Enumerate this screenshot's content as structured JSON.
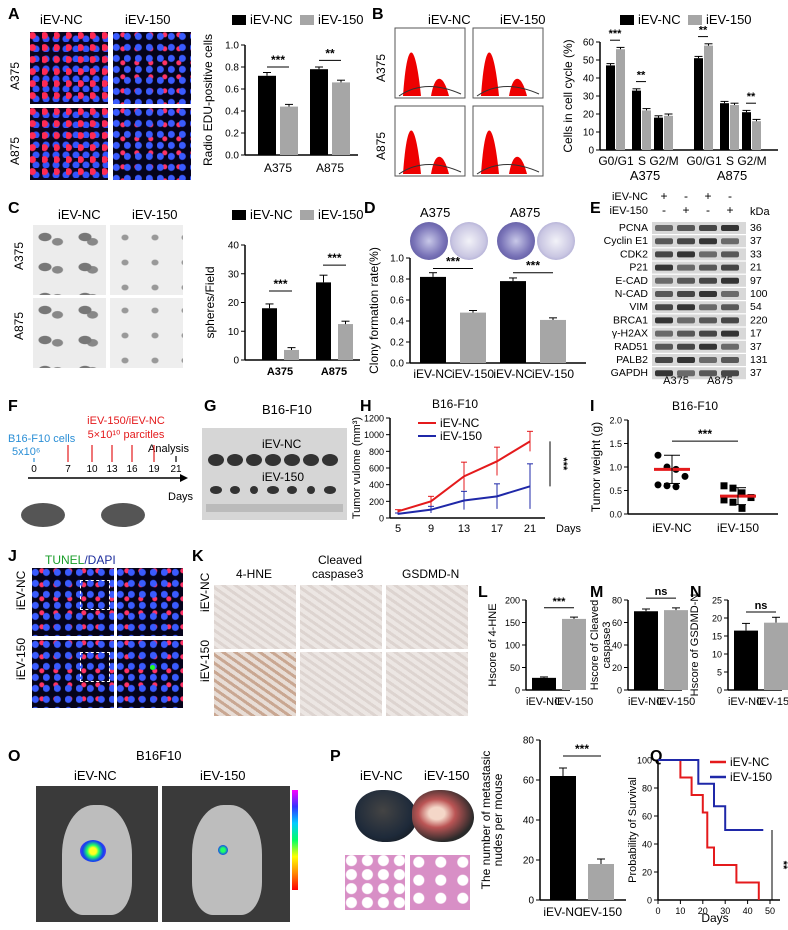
{
  "panels": {
    "A": {
      "label": "A",
      "col1": "iEV-NC",
      "col2": "iEV-150",
      "row1": "A375",
      "row2": "A875",
      "legend": [
        "iEV-NC",
        "iEV-150"
      ],
      "ylabel": "Radio EDU-positive cells",
      "yticks": [
        "0.0",
        "0.2",
        "0.4",
        "0.6",
        "0.8",
        "1.0"
      ],
      "groups": [
        "A375",
        "A875"
      ],
      "sig": [
        "***",
        "**"
      ]
    },
    "B": {
      "label": "B",
      "col1": "iEV-NC",
      "col2": "iEV-150",
      "row1": "A375",
      "row2": "A875",
      "legend": [
        "iEV-NC",
        "iEV-150"
      ],
      "ylabel": "Cells in cell cycle (%)",
      "yticks": [
        "0",
        "10",
        "20",
        "30",
        "40",
        "50",
        "60"
      ],
      "phases": [
        "G0/G1",
        "S",
        "G2/M",
        "G0/G1",
        "S",
        "G2/M"
      ],
      "groups": [
        "A375",
        "A875"
      ],
      "sig": [
        "***",
        "**",
        "**",
        "**"
      ]
    },
    "C": {
      "label": "C",
      "col1": "iEV-NC",
      "col2": "iEV-150",
      "row1": "A375",
      "row2": "A875",
      "legend": [
        "iEV-NC",
        "iEV-150"
      ],
      "ylabel": "spheres/Field",
      "yticks": [
        "0",
        "10",
        "20",
        "30",
        "40"
      ],
      "groups": [
        "A375",
        "A875"
      ],
      "sig": [
        "***",
        "***"
      ]
    },
    "D": {
      "label": "D",
      "col1": "A375",
      "col2": "A875",
      "ylabel": "Clony formation rate(%)",
      "yticks": [
        "0.0",
        "0.2",
        "0.4",
        "0.6",
        "0.8",
        "1.0"
      ],
      "xlabels": [
        "iEV-NC",
        "iEV-150",
        "iEV-NC",
        "iEV-150"
      ],
      "sig": [
        "***",
        "***"
      ]
    },
    "E": {
      "label": "E",
      "rows_header": [
        "iEV-NC",
        "iEV-150"
      ],
      "signs": [
        [
          "+",
          "-",
          "+",
          "-"
        ],
        [
          "-",
          "+",
          "-",
          "+"
        ]
      ],
      "kda": "kDa",
      "proteins": [
        "PCNA",
        "Cyclin E1",
        "CDK2",
        "P21",
        "E-CAD",
        "N-CAD",
        "VIM",
        "BRCA1",
        "γ-H2AX",
        "RAD51",
        "PALB2",
        "GAPDH"
      ],
      "weights": [
        "36",
        "37",
        "33",
        "21",
        "97",
        "100",
        "54",
        "220",
        "17",
        "37",
        "131",
        "37"
      ],
      "groups": [
        "A375",
        "A875"
      ]
    },
    "F": {
      "label": "F",
      "injection": "iEV-150/iEV-NC",
      "dose": "5×10¹⁰ parcitles",
      "cells": "B16-F10 cells",
      "cell_count": "5x10⁶",
      "days": [
        "0",
        "7",
        "10",
        "13",
        "16",
        "19",
        "21"
      ],
      "analysis": "Analysis",
      "axis": "Days"
    },
    "G": {
      "label": "G",
      "title": "B16-F10",
      "row1": "iEV-NC",
      "row2": "iEV-150"
    },
    "H": {
      "label": "H",
      "title": "B16-F10",
      "legend": [
        "iEV-NC",
        "iEV-150"
      ],
      "ylabel": "Tumor vulome (mm³)",
      "yticks": [
        "0",
        "200",
        "400",
        "600",
        "800",
        "1000",
        "1200"
      ],
      "xticks": [
        "5",
        "9",
        "13",
        "17",
        "21"
      ],
      "xunit": "Days",
      "sig": "***"
    },
    "I": {
      "label": "I",
      "title": "B16-F10",
      "ylabel": "Tumor weight (g)",
      "yticks": [
        "0.0",
        "0.5",
        "1.0",
        "1.5",
        "2.0"
      ],
      "xlabels": [
        "iEV-NC",
        "iEV-150"
      ],
      "sig": "***"
    },
    "J": {
      "label": "J",
      "title_a": "TUNEL",
      "title_b": "/DAPI",
      "row1": "iEV-NC",
      "row2": "iEV-150"
    },
    "K": {
      "label": "K",
      "col1": "4-HNE",
      "col2a": "Cleaved",
      "col2b": "caspase3",
      "col3": "GSDMD-N",
      "row1": "iEV-NC",
      "row2": "iEV-150"
    },
    "L": {
      "label": "L",
      "ylabel": "Hscore of 4-HNE",
      "yticks": [
        "0",
        "50",
        "100",
        "150",
        "200"
      ],
      "xlabels": [
        "iEV-NC",
        "iEV-150"
      ],
      "sig": "***"
    },
    "M": {
      "label": "M",
      "ylabel_a": "Hscore of Cleaved",
      "ylabel_b": "caspase3",
      "yticks": [
        "0",
        "20",
        "40",
        "60",
        "80"
      ],
      "xlabels": [
        "iEV-NC",
        "iEV-150"
      ],
      "sig": "ns"
    },
    "N": {
      "label": "N",
      "ylabel": "Hscore of GSDMD-N",
      "yticks": [
        "0",
        "5",
        "10",
        "15",
        "20",
        "25"
      ],
      "xlabels": [
        "iEV-NC",
        "iEV-150"
      ],
      "sig": "ns"
    },
    "O": {
      "label": "O",
      "title": "B16F10",
      "col1": "iEV-NC",
      "col2": "iEV-150"
    },
    "P": {
      "label": "P",
      "col1": "iEV-NC",
      "col2": "iEV-150",
      "ylabel_a": "The number of metastasic",
      "ylabel_b": "nudes per mouse",
      "yticks": [
        "0",
        "20",
        "40",
        "60",
        "80"
      ],
      "xlabels": [
        "iEV-NC",
        "iEV-150"
      ],
      "sig": "***"
    },
    "Q": {
      "label": "Q",
      "legend": [
        "iEV-NC",
        "iEV-150"
      ],
      "ylabel": "Probability of Survival",
      "yticks": [
        "0",
        "20",
        "40",
        "60",
        "80",
        "100"
      ],
      "xticks": [
        "0",
        "10",
        "20",
        "30",
        "40",
        "50"
      ],
      "xlabel": "Days",
      "sig": "**"
    }
  },
  "colors": {
    "nc": "#000000",
    "ev150": "#a6a6a6",
    "red": "#e41a1c",
    "blue": "#1f28a8"
  },
  "chart_data": [
    {
      "type": "bar",
      "panel": "A",
      "categories": [
        "A375",
        "A875"
      ],
      "ylim": [
        0,
        1.0
      ],
      "ylabel": "Radio EDU-positive cells",
      "series": [
        {
          "name": "iEV-NC",
          "values": [
            0.72,
            0.78
          ],
          "errors": [
            0.03,
            0.02
          ]
        },
        {
          "name": "iEV-150",
          "values": [
            0.44,
            0.66
          ],
          "errors": [
            0.02,
            0.02
          ]
        }
      ]
    },
    {
      "type": "bar",
      "panel": "B",
      "categories": [
        "G0/G1",
        "S",
        "G2/M",
        "G0/G1",
        "S",
        "G2/M"
      ],
      "ylim": [
        0,
        60
      ],
      "ylabel": "Cells in cell cycle (%)",
      "series": [
        {
          "name": "iEV-NC",
          "values": [
            47,
            33,
            18,
            51,
            26,
            21
          ],
          "errors": [
            1,
            1,
            1,
            1,
            1,
            1
          ]
        },
        {
          "name": "iEV-150",
          "values": [
            56,
            22,
            19,
            58,
            25,
            16
          ],
          "errors": [
            1,
            1,
            1,
            1,
            1,
            1
          ]
        }
      ]
    },
    {
      "type": "bar",
      "panel": "C",
      "categories": [
        "A375",
        "A875"
      ],
      "ylim": [
        0,
        40
      ],
      "ylabel": "spheres/Field",
      "series": [
        {
          "name": "iEV-NC",
          "values": [
            18,
            27
          ],
          "errors": [
            1.5,
            2.5
          ]
        },
        {
          "name": "iEV-150",
          "values": [
            3.5,
            12.5
          ],
          "errors": [
            0.8,
            1
          ]
        }
      ]
    },
    {
      "type": "bar",
      "panel": "D",
      "categories": [
        "iEV-NC",
        "iEV-150",
        "iEV-NC",
        "iEV-150"
      ],
      "ylim": [
        0,
        1.0
      ],
      "ylabel": "Clony formation rate(%)",
      "values": [
        0.82,
        0.48,
        0.78,
        0.41
      ],
      "errors": [
        0.04,
        0.02,
        0.03,
        0.02
      ]
    },
    {
      "type": "line",
      "panel": "H",
      "x": [
        5,
        9,
        13,
        17,
        21
      ],
      "ylim": [
        0,
        1200
      ],
      "ylabel": "Tumor vulome (mm³)",
      "series": [
        {
          "name": "iEV-NC",
          "values": [
            80,
            200,
            500,
            680,
            920
          ],
          "errors": [
            20,
            60,
            170,
            170,
            120
          ]
        },
        {
          "name": "iEV-150",
          "values": [
            50,
            100,
            210,
            260,
            380
          ],
          "errors": [
            10,
            40,
            110,
            150,
            270
          ]
        }
      ]
    },
    {
      "type": "scatter",
      "panel": "I",
      "categories": [
        "iEV-NC",
        "iEV-150"
      ],
      "ylim": [
        0,
        2.0
      ],
      "ylabel": "Tumor weight (g)",
      "series": [
        {
          "name": "iEV-NC",
          "values": [
            1.25,
            1.0,
            0.95,
            0.8,
            0.62,
            0.6,
            0.58
          ],
          "mean": 0.95,
          "sd": 0.3
        },
        {
          "name": "iEV-150",
          "values": [
            0.6,
            0.55,
            0.45,
            0.35,
            0.3,
            0.25,
            0.12
          ],
          "mean": 0.38,
          "sd": 0.18
        }
      ]
    },
    {
      "type": "bar",
      "panel": "L",
      "categories": [
        "iEV-NC",
        "iEV-150"
      ],
      "ylim": [
        0,
        200
      ],
      "ylabel": "Hscore of 4-HNE",
      "values": [
        27,
        158
      ],
      "errors": [
        2,
        4
      ]
    },
    {
      "type": "bar",
      "panel": "M",
      "categories": [
        "iEV-NC",
        "iEV-150"
      ],
      "ylim": [
        0,
        80
      ],
      "ylabel": "Hscore of Cleaved caspase3",
      "values": [
        70,
        71
      ],
      "errors": [
        2,
        2
      ]
    },
    {
      "type": "bar",
      "panel": "N",
      "categories": [
        "iEV-NC",
        "iEV-150"
      ],
      "ylim": [
        0,
        25
      ],
      "ylabel": "Hscore of GSDMD-N",
      "values": [
        16.5,
        18.7
      ],
      "errors": [
        2,
        1.5
      ]
    },
    {
      "type": "bar",
      "panel": "P",
      "categories": [
        "iEV-NC",
        "iEV-150"
      ],
      "ylim": [
        0,
        80
      ],
      "ylabel": "The number of metastasic nudes per mouse",
      "values": [
        62,
        18
      ],
      "errors": [
        4,
        2.5
      ]
    },
    {
      "type": "line",
      "panel": "Q",
      "ylim": [
        0,
        100
      ],
      "xlim": [
        0,
        50
      ],
      "ylabel": "Probability of Survival",
      "xlabel": "Days",
      "series": [
        {
          "name": "iEV-NC",
          "steps": [
            [
              0,
              100
            ],
            [
              10,
              100
            ],
            [
              10,
              87.5
            ],
            [
              15,
              87.5
            ],
            [
              15,
              75
            ],
            [
              20,
              75
            ],
            [
              20,
              62.5
            ],
            [
              22,
              62.5
            ],
            [
              22,
              37.5
            ],
            [
              25,
              37.5
            ],
            [
              25,
              25
            ],
            [
              35,
              25
            ],
            [
              35,
              12.5
            ],
            [
              45,
              12.5
            ],
            [
              45,
              0
            ]
          ]
        },
        {
          "name": "iEV-150",
          "steps": [
            [
              0,
              100
            ],
            [
              18,
              100
            ],
            [
              18,
              83
            ],
            [
              25,
              83
            ],
            [
              25,
              67
            ],
            [
              30,
              67
            ],
            [
              30,
              50
            ],
            [
              47,
              50
            ]
          ]
        }
      ]
    }
  ]
}
